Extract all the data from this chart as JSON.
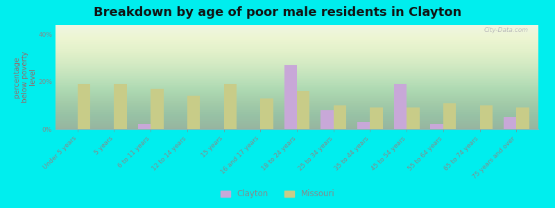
{
  "title": "Breakdown by age of poor male residents in Clayton",
  "categories": [
    "Under 5 years",
    "5 years",
    "6 to 11 years",
    "12 to 14 years",
    "15 years",
    "16 and 17 years",
    "18 to 24 years",
    "25 to 34 years",
    "35 to 44 years",
    "45 to 54 years",
    "55 to 64 years",
    "65 to 74 years",
    "75 years and over"
  ],
  "clayton_values": [
    0,
    0,
    2,
    0,
    0,
    0,
    27,
    8,
    3,
    19,
    2,
    0,
    5
  ],
  "missouri_values": [
    19,
    19,
    17,
    14,
    19,
    13,
    16,
    10,
    9,
    9,
    11,
    10,
    9
  ],
  "clayton_color": "#c8a8d8",
  "missouri_color": "#c8cc88",
  "bg_color": "#00eeee",
  "plot_bg_top": "#e8f2e0",
  "plot_bg_bottom": "#f5f0f0",
  "ylabel": "percentage\nbelow poverty\nlevel",
  "ylim": [
    0,
    44
  ],
  "yticks": [
    0,
    20,
    40
  ],
  "ytick_labels": [
    "0%",
    "20%",
    "40%"
  ],
  "bar_width": 0.35,
  "title_fontsize": 13,
  "axis_label_fontsize": 7.5,
  "tick_fontsize": 6.5,
  "legend_labels": [
    "Clayton",
    "Missouri"
  ],
  "ylabel_color": "#996666",
  "tick_color": "#888888",
  "watermark": "City-Data.com"
}
